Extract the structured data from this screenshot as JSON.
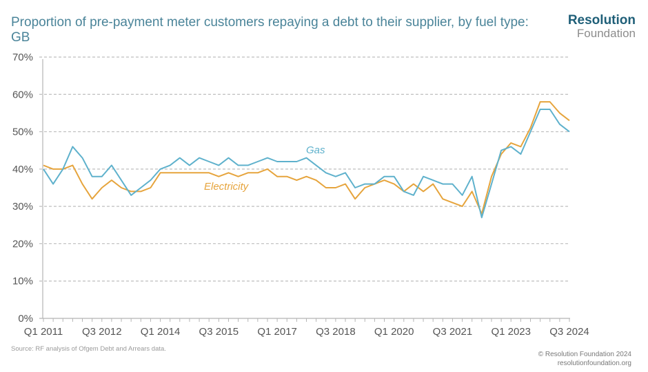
{
  "header": {
    "title": "Proportion of pre-payment meter customers repaying a debt to their supplier, by fuel type: GB",
    "logo_line1": "Resolution",
    "logo_line2": "Foundation"
  },
  "footer": {
    "source": "Source: RF analysis of Ofgem Debt and Arrears data.",
    "copyright": "© Resolution Foundation 2024",
    "website": "resolutionfoundation.org"
  },
  "colors": {
    "gas": "#5eb1cc",
    "electricity": "#e6a43c",
    "grid": "#bdbdbd",
    "title": "#4a8499"
  },
  "chart_data": {
    "type": "line",
    "title": "Proportion of pre-payment meter customers repaying a debt to their supplier, by fuel type: GB",
    "xlabel": "",
    "ylabel": "",
    "ylim": [
      0,
      70
    ],
    "yticks": [
      "0%",
      "10%",
      "20%",
      "30%",
      "40%",
      "50%",
      "60%",
      "70%"
    ],
    "ytick_values": [
      0,
      10,
      20,
      30,
      40,
      50,
      60,
      70
    ],
    "grid": true,
    "x": [
      "Q1 2011",
      "Q2 2011",
      "Q3 2011",
      "Q4 2011",
      "Q1 2012",
      "Q2 2012",
      "Q3 2012",
      "Q4 2012",
      "Q1 2013",
      "Q2 2013",
      "Q3 2013",
      "Q4 2013",
      "Q1 2014",
      "Q2 2014",
      "Q3 2014",
      "Q4 2014",
      "Q1 2015",
      "Q2 2015",
      "Q3 2015",
      "Q4 2015",
      "Q1 2016",
      "Q2 2016",
      "Q3 2016",
      "Q4 2016",
      "Q1 2017",
      "Q2 2017",
      "Q3 2017",
      "Q4 2017",
      "Q1 2018",
      "Q2 2018",
      "Q3 2018",
      "Q4 2018",
      "Q1 2019",
      "Q2 2019",
      "Q3 2019",
      "Q4 2019",
      "Q1 2020",
      "Q2 2020",
      "Q3 2020",
      "Q4 2020",
      "Q1 2021",
      "Q2 2021",
      "Q3 2021",
      "Q4 2021",
      "Q1 2022",
      "Q2 2022",
      "Q3 2022",
      "Q4 2022",
      "Q1 2023",
      "Q2 2023",
      "Q3 2023",
      "Q4 2023",
      "Q1 2024",
      "Q2 2024",
      "Q3 2024"
    ],
    "xtick_labels": [
      "Q1 2011",
      "Q3 2012",
      "Q1 2014",
      "Q3 2015",
      "Q1 2017",
      "Q3 2018",
      "Q1 2020",
      "Q3 2021",
      "Q1 2023",
      "Q3 2024"
    ],
    "xtick_indices": [
      0,
      6,
      12,
      18,
      24,
      30,
      36,
      42,
      48,
      54
    ],
    "series": [
      {
        "name": "Gas",
        "values": [
          40,
          36,
          40,
          46,
          43,
          38,
          38,
          41,
          37,
          33,
          35,
          37,
          40,
          41,
          43,
          41,
          43,
          42,
          41,
          43,
          41,
          41,
          42,
          43,
          42,
          42,
          42,
          43,
          41,
          39,
          38,
          39,
          35,
          36,
          36,
          38,
          38,
          34,
          33,
          38,
          37,
          36,
          36,
          33,
          38,
          27,
          36,
          45,
          46,
          44,
          50,
          56,
          56,
          52,
          50
        ]
      },
      {
        "name": "Electricity",
        "values": [
          41,
          40,
          40,
          41,
          36,
          32,
          35,
          37,
          35,
          34,
          34,
          35,
          39,
          39,
          39,
          39,
          39,
          39,
          38,
          39,
          38,
          39,
          39,
          40,
          38,
          38,
          37,
          38,
          37,
          35,
          35,
          36,
          32,
          35,
          36,
          37,
          36,
          34,
          36,
          34,
          36,
          32,
          31,
          30,
          34,
          28,
          38,
          44,
          47,
          46,
          51,
          58,
          58,
          55,
          53
        ]
      }
    ],
    "legend": "inline labels",
    "annotations": [
      "Gas",
      "Electricity"
    ]
  }
}
